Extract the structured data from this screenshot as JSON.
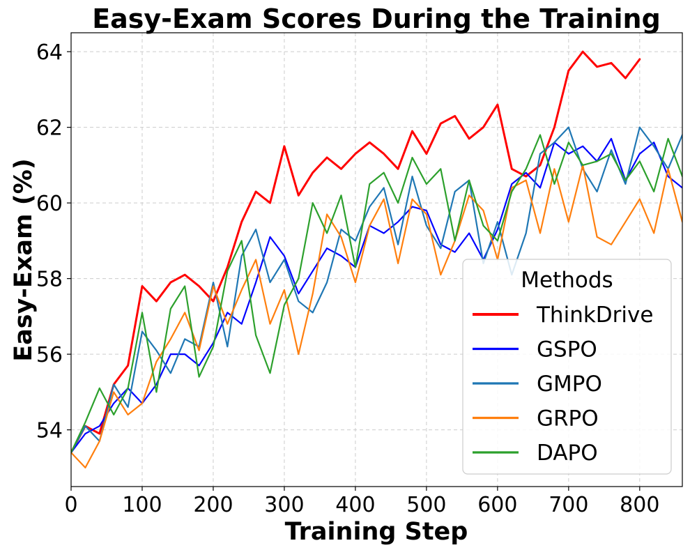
{
  "chart_data": {
    "type": "line",
    "title": "Easy-Exam Scores During the Training",
    "xlabel": "Training Step",
    "ylabel": "Easy-Exam (%)",
    "xlim": [
      0,
      860
    ],
    "ylim": [
      52.5,
      64.5
    ],
    "xticks": [
      0,
      100,
      200,
      300,
      400,
      500,
      600,
      700,
      800
    ],
    "yticks": [
      54,
      56,
      58,
      60,
      62,
      64
    ],
    "grid": true,
    "legend": {
      "title": "Methods",
      "placement": "lower-right"
    },
    "x": [
      0,
      20,
      40,
      60,
      80,
      100,
      120,
      140,
      160,
      180,
      200,
      220,
      240,
      260,
      280,
      300,
      320,
      340,
      360,
      380,
      400,
      420,
      440,
      460,
      480,
      500,
      520,
      540,
      560,
      580,
      600,
      620,
      640,
      660,
      680,
      700,
      720,
      740,
      760,
      780,
      800,
      820,
      840,
      860
    ],
    "series": [
      {
        "name": "ThinkDrive",
        "color": "#ff0000",
        "width": 3,
        "values": [
          53.4,
          54.1,
          53.9,
          55.2,
          55.7,
          57.8,
          57.4,
          57.9,
          58.1,
          57.8,
          57.4,
          58.3,
          59.5,
          60.3,
          60.0,
          61.5,
          60.2,
          60.8,
          61.2,
          60.9,
          61.3,
          61.6,
          61.3,
          60.9,
          61.9,
          61.3,
          62.1,
          62.3,
          61.7,
          62.0,
          62.6,
          60.9,
          60.7,
          61.0,
          62.0,
          63.5,
          64.0,
          63.6,
          63.7,
          63.3,
          63.8,
          null,
          null,
          null
        ]
      },
      {
        "name": "GSPO",
        "color": "#0000ff",
        "width": 2.2,
        "values": [
          53.4,
          53.9,
          54.1,
          54.7,
          55.1,
          54.7,
          55.2,
          56.0,
          56.0,
          55.7,
          56.3,
          57.1,
          56.8,
          57.9,
          59.1,
          58.6,
          57.6,
          58.2,
          58.8,
          58.6,
          58.3,
          59.4,
          59.2,
          59.5,
          59.9,
          59.8,
          58.9,
          58.7,
          59.2,
          58.5,
          59.3,
          60.5,
          60.8,
          60.4,
          61.6,
          61.3,
          61.5,
          61.1,
          61.7,
          60.6,
          61.3,
          61.6,
          60.7,
          60.4
        ]
      },
      {
        "name": "GMPO",
        "color": "#1f77b4",
        "width": 2.2,
        "values": [
          53.4,
          54.1,
          53.7,
          55.2,
          54.6,
          56.6,
          56.1,
          55.5,
          56.4,
          56.2,
          57.9,
          56.2,
          58.6,
          59.3,
          57.9,
          58.5,
          57.4,
          57.1,
          57.9,
          59.3,
          59.0,
          59.9,
          60.4,
          58.9,
          60.7,
          59.4,
          58.8,
          60.3,
          60.6,
          58.4,
          59.5,
          58.1,
          59.2,
          61.3,
          61.6,
          62.0,
          60.9,
          60.3,
          61.4,
          60.5,
          62.0,
          61.5,
          60.9,
          61.8
        ]
      },
      {
        "name": "GRPO",
        "color": "#ff7f0e",
        "width": 2.2,
        "values": [
          53.4,
          53.0,
          53.7,
          55.0,
          54.4,
          54.7,
          55.8,
          56.4,
          57.1,
          56.1,
          57.8,
          56.8,
          57.7,
          58.5,
          56.8,
          57.7,
          56.0,
          57.6,
          59.7,
          59.1,
          57.9,
          59.4,
          60.1,
          58.4,
          60.1,
          59.7,
          58.1,
          59.0,
          60.2,
          59.8,
          58.5,
          60.4,
          60.6,
          59.2,
          60.9,
          59.5,
          61.0,
          59.1,
          58.9,
          59.5,
          60.1,
          59.2,
          60.9,
          59.5
        ]
      },
      {
        "name": "DAPO",
        "color": "#2ca02c",
        "width": 2.2,
        "values": [
          53.4,
          54.2,
          55.1,
          54.4,
          55.1,
          57.1,
          55.0,
          57.2,
          57.8,
          55.4,
          56.2,
          58.2,
          59.0,
          56.5,
          55.5,
          57.3,
          58.0,
          60.0,
          59.2,
          60.2,
          58.3,
          60.5,
          60.8,
          60.0,
          61.2,
          60.5,
          60.9,
          59.0,
          60.6,
          59.4,
          59.0,
          60.3,
          60.9,
          61.8,
          60.5,
          61.6,
          61.0,
          61.1,
          61.3,
          60.6,
          61.1,
          60.3,
          61.7,
          60.7
        ]
      }
    ]
  }
}
